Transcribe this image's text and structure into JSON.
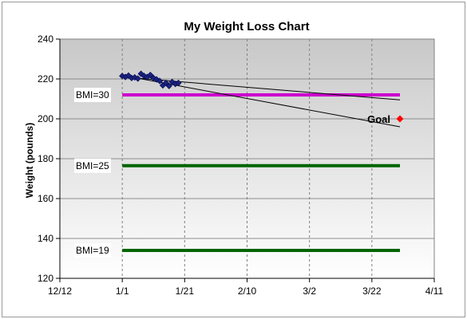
{
  "chart_data": {
    "type": "scatter",
    "title": "My Weight Loss Chart",
    "xlabel": "",
    "ylabel": "Weight (pounds)",
    "x_tick_labels": [
      "12/12",
      "1/1",
      "1/21",
      "2/10",
      "3/2",
      "3/22",
      "4/11"
    ],
    "x_range": [
      "12/12",
      "4/11"
    ],
    "ylim": [
      120,
      240
    ],
    "y_ticks": [
      120,
      140,
      160,
      180,
      200,
      220,
      240
    ],
    "grid": {
      "vertical": "dashed",
      "horizontal": "solid"
    },
    "series": [
      {
        "kind": "markers",
        "marker": "diamond",
        "color": "#1a237e",
        "points": [
          {
            "x": "1/1",
            "y": 221.5
          },
          {
            "x": "1/2",
            "y": 221.0
          },
          {
            "x": "1/3",
            "y": 221.7
          },
          {
            "x": "1/4",
            "y": 220.5
          },
          {
            "x": "1/5",
            "y": 220.8
          },
          {
            "x": "1/6",
            "y": 220.2
          },
          {
            "x": "1/7",
            "y": 222.6
          },
          {
            "x": "1/8",
            "y": 221.5
          },
          {
            "x": "1/9",
            "y": 221.0
          },
          {
            "x": "1/10",
            "y": 222.0
          },
          {
            "x": "1/11",
            "y": 220.5
          },
          {
            "x": "1/12",
            "y": 219.8
          },
          {
            "x": "1/13",
            "y": 219.0
          },
          {
            "x": "1/14",
            "y": 216.8
          },
          {
            "x": "1/15",
            "y": 218.0
          },
          {
            "x": "1/16",
            "y": 216.5
          },
          {
            "x": "1/17",
            "y": 218.5
          },
          {
            "x": "1/18",
            "y": 217.5
          },
          {
            "x": "1/19",
            "y": 218.0
          }
        ]
      },
      {
        "kind": "trendline",
        "color": "#000000",
        "from": {
          "x": "1/1",
          "y": 221.8
        },
        "to": {
          "x": "3/31",
          "y": 196.0
        }
      },
      {
        "kind": "trendline",
        "color": "#000000",
        "from": {
          "x": "1/1",
          "y": 221.0
        },
        "to": {
          "x": "3/31",
          "y": 209.5
        }
      }
    ],
    "reference_lines": [
      {
        "label": "BMI=30",
        "y": 212,
        "x_from": "1/1",
        "x_to": "3/31",
        "color": "#cc00cc"
      },
      {
        "label": "BMI=25",
        "y": 176.5,
        "x_from": "1/1",
        "x_to": "3/31",
        "color": "#006400"
      },
      {
        "label": "BMI=19",
        "y": 134,
        "x_from": "1/1",
        "x_to": "3/31",
        "color": "#006400"
      }
    ],
    "goal": {
      "label": "Goal",
      "x": "3/31",
      "y": 200,
      "marker": "diamond",
      "color": "#ff0000"
    }
  }
}
